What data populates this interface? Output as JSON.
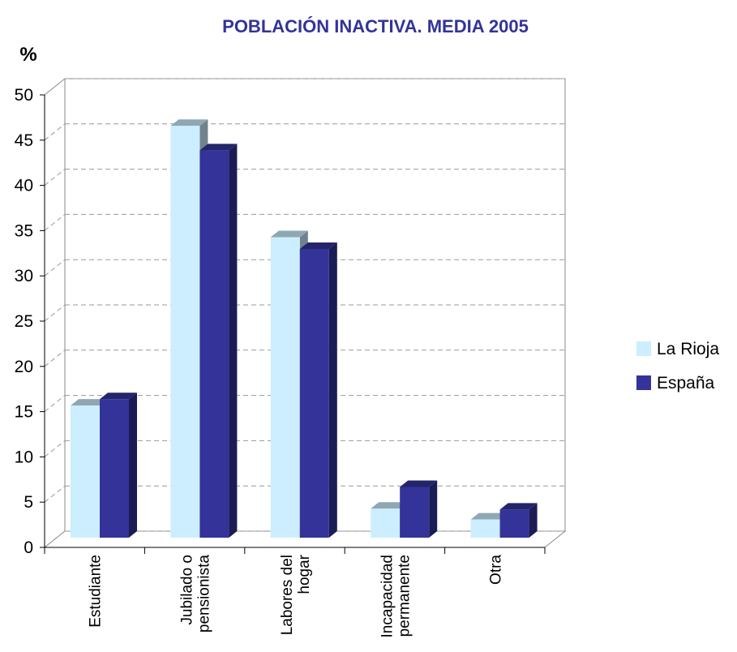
{
  "chart_data": {
    "type": "bar3d",
    "title": "POBLACIÓN INACTIVA. MEDIA 2005",
    "y_label": "%",
    "categories": [
      "Estudiante",
      "Jubilado o\npensionista",
      "Labores del\nhogar",
      "Incapacidad\npermanente",
      "Otra"
    ],
    "series": [
      {
        "name": "La Rioja",
        "color": "#cceeff",
        "values": [
          14.6,
          45.5,
          33.2,
          3.2,
          2.0
        ]
      },
      {
        "name": "España",
        "color": "#333399",
        "values": [
          15.3,
          42.8,
          31.9,
          5.6,
          3.1
        ]
      }
    ],
    "ylim": [
      0,
      50
    ],
    "yticks": [
      0,
      5,
      10,
      15,
      20,
      25,
      30,
      35,
      40,
      45,
      50
    ],
    "grid": true,
    "legend": "right"
  }
}
